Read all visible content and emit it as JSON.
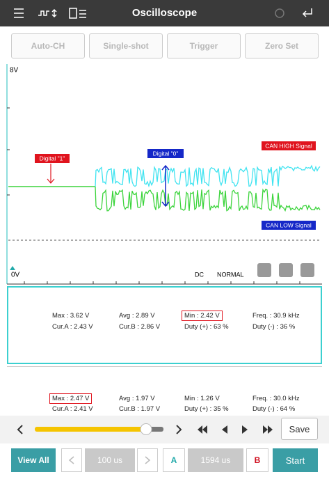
{
  "header": {
    "title": "Oscilloscope"
  },
  "toolbar": [
    "Auto-CH",
    "Single-shot",
    "Trigger",
    "Zero Set"
  ],
  "scope": {
    "top_label": "8V",
    "bottom_label": "0V",
    "coupling": "DC",
    "mode": "NORMAL",
    "annotations": [
      "Digital \"1\"",
      "Digital \"0\"",
      "CAN HIGH Signal",
      "CAN LOW Signal"
    ]
  },
  "channels": [
    {
      "rows": [
        [
          "Max : 3.62 V",
          "Avg : 2.89 V",
          "Min : 2.42 V",
          "Freq. : 30.9 kHz"
        ],
        [
          "Cur.A : 2.43 V",
          "Cur.B : 2.86 V",
          "Duty (+) : 63 %",
          "Duty (-) : 36 %"
        ]
      ]
    },
    {
      "rows": [
        [
          "Max : 2.47 V",
          "Avg : 1.97 V",
          "Min : 1.26 V",
          "Freq. : 30.0 kHz"
        ],
        [
          "Cur.A : 2.41 V",
          "Cur.B : 1.97 V",
          "Duty (+) : 35 %",
          "Duty (-) : 64 %"
        ]
      ]
    }
  ],
  "controls": {
    "save": "Save",
    "view_all": "View All",
    "time_div": "100 us",
    "cursor_a": "A",
    "cursor_time": "1594 us",
    "cursor_b": "B",
    "start": "Start"
  }
}
